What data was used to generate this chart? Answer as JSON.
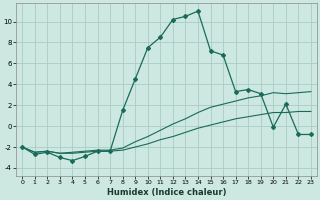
{
  "xlabel": "Humidex (Indice chaleur)",
  "background_color": "#cce8e0",
  "grid_color": "#aaccc4",
  "line_color": "#1a6b5a",
  "xlim": [
    -0.5,
    23.5
  ],
  "ylim": [
    -4.8,
    11.8
  ],
  "xticks": [
    0,
    1,
    2,
    3,
    4,
    5,
    6,
    7,
    8,
    9,
    10,
    11,
    12,
    13,
    14,
    15,
    16,
    17,
    18,
    19,
    20,
    21,
    22,
    23
  ],
  "yticks": [
    -4,
    -2,
    0,
    2,
    4,
    6,
    8,
    10
  ],
  "line1_x": [
    0,
    1,
    2,
    3,
    4,
    5,
    6,
    7,
    8,
    9,
    10,
    11,
    12,
    13,
    14,
    15,
    16,
    17,
    18,
    19,
    20,
    21,
    22,
    23
  ],
  "line1_y": [
    -2.0,
    -2.7,
    -2.5,
    -3.0,
    -3.3,
    -2.9,
    -2.4,
    -2.4,
    1.5,
    4.5,
    7.5,
    8.5,
    10.2,
    10.5,
    11.0,
    7.2,
    6.8,
    3.3,
    3.5,
    3.1,
    -0.1,
    2.1,
    -0.8,
    -0.8
  ],
  "line2_x": [
    0,
    1,
    2,
    3,
    4,
    5,
    6,
    7,
    8,
    9,
    10,
    11,
    12,
    13,
    14,
    15,
    16,
    17,
    18,
    19,
    20,
    21,
    22,
    23
  ],
  "line2_y": [
    -2.0,
    -2.5,
    -2.4,
    -2.6,
    -2.5,
    -2.4,
    -2.3,
    -2.3,
    -2.1,
    -1.5,
    -1.0,
    -0.4,
    0.2,
    0.7,
    1.3,
    1.8,
    2.1,
    2.4,
    2.7,
    2.9,
    3.2,
    3.1,
    3.2,
    3.3
  ],
  "line3_x": [
    0,
    1,
    2,
    3,
    4,
    5,
    6,
    7,
    8,
    9,
    10,
    11,
    12,
    13,
    14,
    15,
    16,
    17,
    18,
    19,
    20,
    21,
    22,
    23
  ],
  "line3_y": [
    -2.0,
    -2.5,
    -2.4,
    -2.6,
    -2.6,
    -2.5,
    -2.4,
    -2.4,
    -2.3,
    -2.0,
    -1.7,
    -1.3,
    -1.0,
    -0.6,
    -0.2,
    0.1,
    0.4,
    0.7,
    0.9,
    1.1,
    1.3,
    1.3,
    1.4,
    1.4
  ]
}
